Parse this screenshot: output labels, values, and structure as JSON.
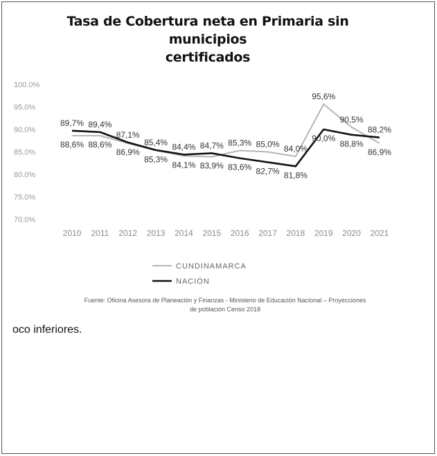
{
  "title_line1": "Tasa de Cobertura neta en Primaria sin municipios",
  "title_line2": "certificados",
  "source_line1": "Fuente: Oficina Asesora de Planeación y Finanzas - Ministerio de Educación Nacional – Proyecciones",
  "source_line2": "de población Censo 2018",
  "body_text": "oco inferiores.",
  "chart_data": {
    "type": "line",
    "x": [
      "2010",
      "2011",
      "2012",
      "2013",
      "2014",
      "2015",
      "2016",
      "2017",
      "2018",
      "2019",
      "2020",
      "2021"
    ],
    "y_ticks": [
      "70.0%",
      "75.0%",
      "80.0%",
      "85.0%",
      "90.0%",
      "95.0%",
      "100.0%"
    ],
    "ylim": [
      70,
      100
    ],
    "grid": false,
    "legend_position": "bottom",
    "series": [
      {
        "name": "CUNDINAMARCA",
        "color": "#b5b5b5",
        "values": [
          88.6,
          88.6,
          86.9,
          85.3,
          84.1,
          83.9,
          85.3,
          85.0,
          84.0,
          95.6,
          90.5,
          86.9
        ],
        "labels": [
          "88,6%",
          "88,6%",
          "86,9%",
          "85,3%",
          "84,1%",
          "83,9%",
          "85,3%",
          "85,0%",
          "84,0%",
          "95,6%",
          "90,5%",
          "86,9%"
        ]
      },
      {
        "name": "NACIÓN",
        "color": "#111111",
        "values": [
          89.7,
          89.4,
          87.1,
          85.4,
          84.4,
          84.7,
          83.6,
          82.7,
          81.8,
          90.0,
          88.8,
          88.2
        ],
        "labels": [
          "89,7%",
          "89,4%",
          "87,1%",
          "85,4%",
          "84,4%",
          "84,7%",
          "83,6%",
          "82,7%",
          "81,8%",
          "90,0%",
          "88,8%",
          "88,2%"
        ]
      }
    ]
  }
}
